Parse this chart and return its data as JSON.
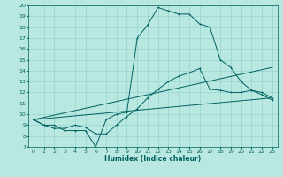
{
  "title": "",
  "xlabel": "Humidex (Indice chaleur)",
  "bg_color": "#b8e8e0",
  "grid_color": "#8ecece",
  "line_color": "#006060",
  "xlim": [
    -0.5,
    23.5
  ],
  "ylim": [
    7,
    20
  ],
  "xticks": [
    0,
    1,
    2,
    3,
    4,
    5,
    6,
    7,
    8,
    9,
    10,
    11,
    12,
    13,
    14,
    15,
    16,
    17,
    18,
    19,
    20,
    21,
    22,
    23
  ],
  "yticks": [
    7,
    8,
    9,
    10,
    11,
    12,
    13,
    14,
    15,
    16,
    17,
    18,
    19,
    20
  ],
  "curve1_x": [
    0,
    1,
    2,
    3,
    4,
    5,
    6,
    7,
    8,
    9,
    10,
    11,
    12,
    13,
    14,
    15,
    16,
    17,
    18,
    19,
    20,
    21,
    22,
    23
  ],
  "curve1_y": [
    9.5,
    9.0,
    9.0,
    8.5,
    8.5,
    8.5,
    7.0,
    9.5,
    10.0,
    10.2,
    17.0,
    18.2,
    19.8,
    19.5,
    19.2,
    19.2,
    18.3,
    18.0,
    15.0,
    14.3,
    13.0,
    12.2,
    12.0,
    11.5
  ],
  "curve2_x": [
    0,
    1,
    2,
    3,
    4,
    5,
    6,
    7,
    8,
    9,
    10,
    11,
    12,
    13,
    14,
    15,
    16,
    17,
    18,
    19,
    20,
    21,
    22,
    23
  ],
  "curve2_y": [
    9.5,
    9.0,
    8.7,
    8.7,
    9.0,
    8.8,
    8.2,
    8.2,
    9.0,
    9.8,
    10.5,
    11.5,
    12.3,
    13.0,
    13.5,
    13.8,
    14.2,
    12.3,
    12.2,
    12.0,
    12.0,
    12.2,
    11.8,
    11.3
  ],
  "line1_x": [
    0,
    23
  ],
  "line1_y": [
    9.5,
    14.3
  ],
  "line2_x": [
    0,
    23
  ],
  "line2_y": [
    9.5,
    11.5
  ],
  "xlabel_fontsize": 5.5,
  "tick_fontsize": 4.5,
  "lw": 0.7,
  "marker_size": 2.0
}
